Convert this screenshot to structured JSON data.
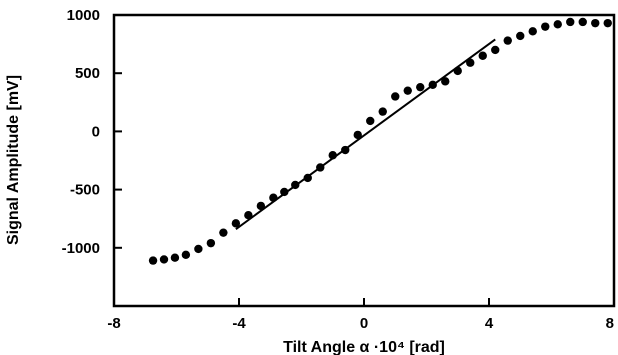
{
  "chart_data": {
    "type": "scatter",
    "title": "",
    "xlabel": "Tilt Angle α  ·10⁴  [rad]",
    "ylabel": "Signal Amplitude  [mV]",
    "xlim": [
      -8,
      8
    ],
    "ylim": [
      -1500,
      1000
    ],
    "x_ticks": [
      -8,
      -4,
      0,
      4,
      8
    ],
    "y_ticks": [
      1000,
      500,
      0,
      -500,
      -1000
    ],
    "grid": false,
    "series": [
      {
        "kind": "points",
        "x": [
          -6.75,
          -6.4,
          -6.05,
          -5.7,
          -5.3,
          -4.9,
          -4.5,
          -4.1,
          -3.7,
          -3.3,
          -2.9,
          -2.55,
          -2.2,
          -1.8,
          -1.4,
          -1.0,
          -0.6,
          -0.2,
          0.2,
          0.6,
          1.0,
          1.4,
          1.8,
          2.2,
          2.6,
          3.0,
          3.4,
          3.8,
          4.2,
          4.6,
          5.0,
          5.4,
          5.8,
          6.2,
          6.6,
          7.0,
          7.4,
          7.8
        ],
        "y": [
          -1110,
          -1100,
          -1085,
          -1060,
          -1010,
          -960,
          -870,
          -790,
          -720,
          -640,
          -570,
          -520,
          -460,
          -400,
          -310,
          -205,
          -160,
          -30,
          90,
          170,
          300,
          350,
          380,
          400,
          430,
          520,
          590,
          650,
          700,
          780,
          820,
          860,
          900,
          920,
          940,
          940,
          930,
          930
        ]
      },
      {
        "kind": "fit-line",
        "x": [
          -4.1,
          4.2
        ],
        "y": [
          -840,
          790
        ]
      }
    ]
  }
}
